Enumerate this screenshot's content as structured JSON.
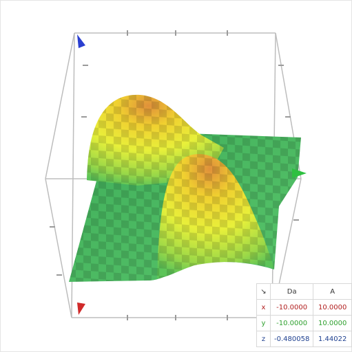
{
  "table": {
    "header": [
      "↘",
      "Da",
      "A"
    ],
    "rows": [
      [
        "x",
        "-10.0000",
        "10.0000"
      ],
      [
        "y",
        "-10.0000",
        "10.0000"
      ],
      [
        "z",
        "-0.480058",
        "1.44022"
      ]
    ]
  }
}
